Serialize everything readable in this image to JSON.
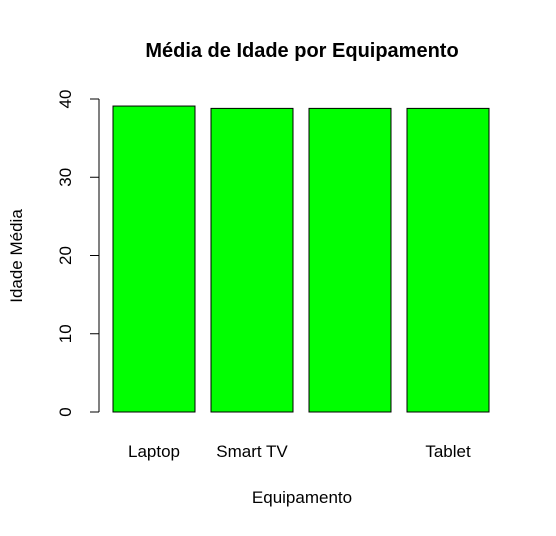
{
  "chart_data": {
    "type": "bar",
    "title": "Média de Idade por Equipamento",
    "xlabel": "Equipamento",
    "ylabel": "Idade Média",
    "categories": [
      "Laptop",
      "Smart TV",
      "",
      "Tablet"
    ],
    "values": [
      39.1,
      38.8,
      38.8,
      38.8
    ],
    "ylim": [
      0,
      40
    ],
    "yticks": [
      "0",
      "10",
      "20",
      "30",
      "40"
    ],
    "bar_color": "#00ff00",
    "bar_stroke": "#000000",
    "grid": false
  }
}
